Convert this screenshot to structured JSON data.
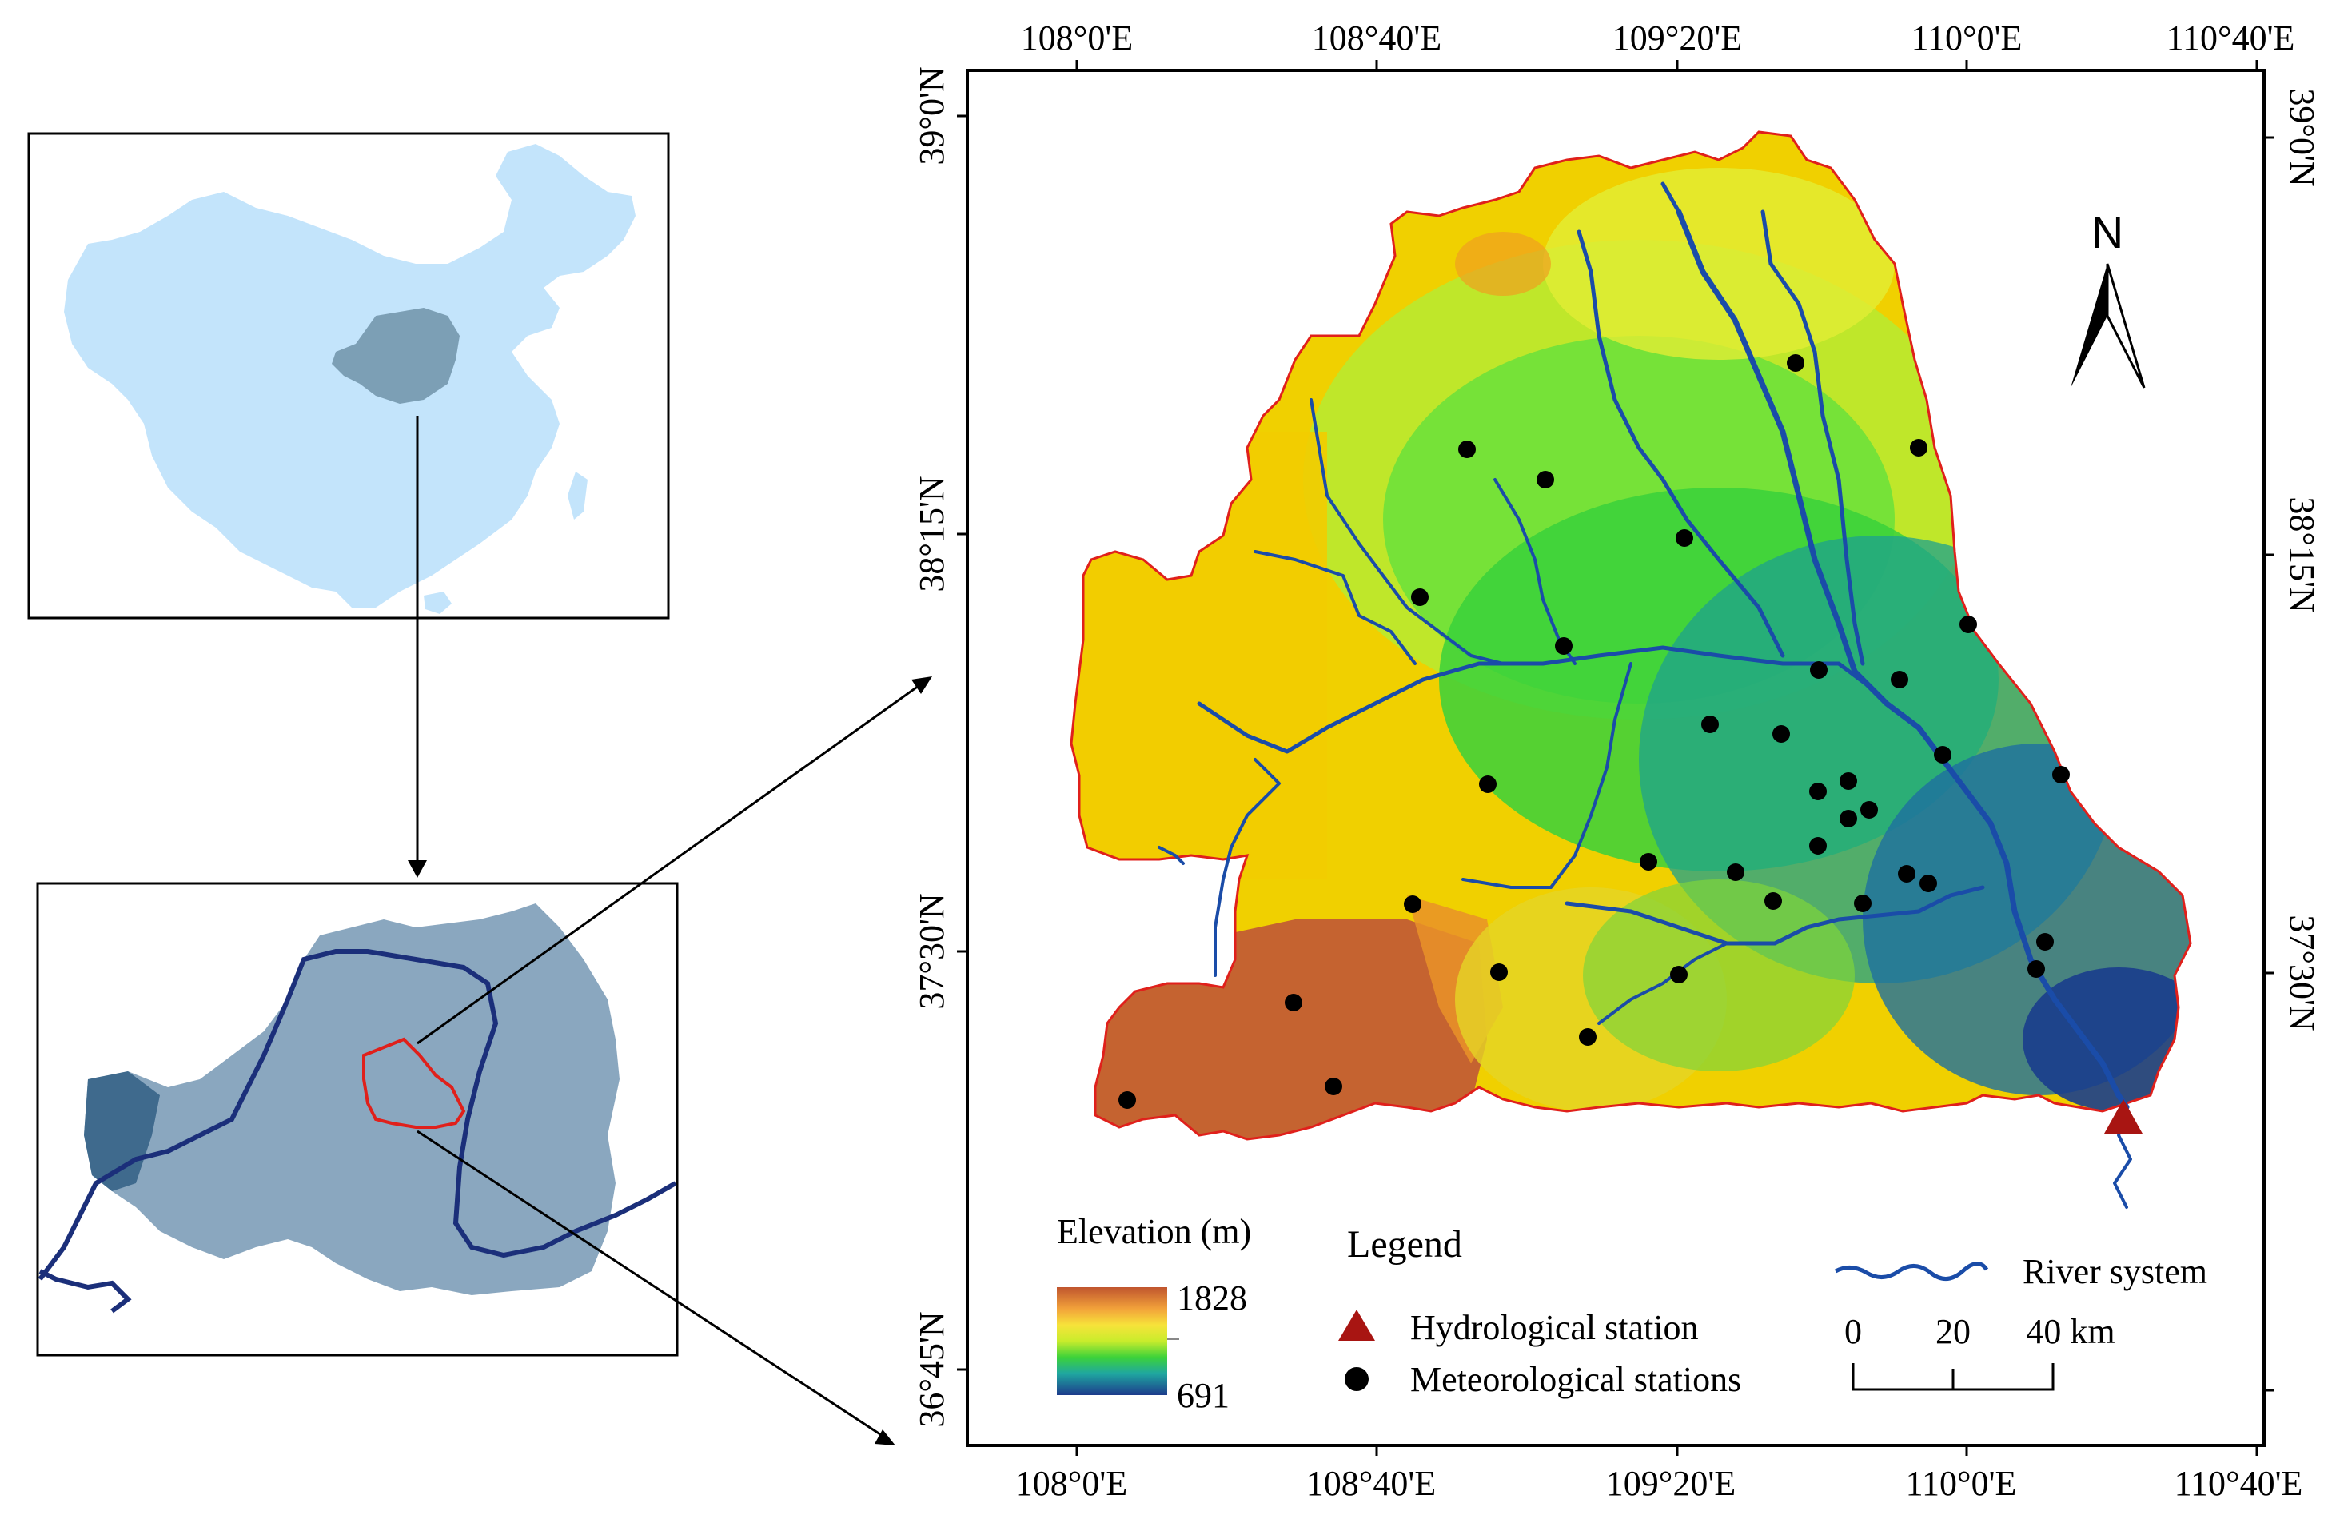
{
  "figure": {
    "colors": {
      "china_fill": "#c3e4fb",
      "plateau_fill": "#7f9fb8",
      "river_blue": "#1a4ca8",
      "dark_river": "#1b2f7a",
      "basin_outline": "#e0201b",
      "station_dot": "#000000",
      "hydro_triangle": "#a81512"
    }
  },
  "main_map": {
    "top_ticks": [
      "108°0'E",
      "108°40'E",
      "109°20'E",
      "110°0'E",
      "110°40'E"
    ],
    "bottom_ticks": [
      "108°0'E",
      "108°40'E",
      "109°20'E",
      "110°0'E",
      "110°40'E"
    ],
    "left_ticks": [
      "39°0'N",
      "38°15'N",
      "37°30'N",
      "36°45'N"
    ],
    "right_ticks": [
      "39°0'N",
      "38°15'N",
      "37°30'N"
    ],
    "north_label": "N"
  },
  "legend": {
    "elevation_title": "Elevation (m)",
    "elevation_max": "1828",
    "elevation_min": "691",
    "legend_title": "Legend",
    "hydro_label": "Hydrological station",
    "meteo_label": "Meteorological stations",
    "river_label": "River system",
    "scale_ticks": [
      "0",
      "20",
      "40 km"
    ]
  }
}
